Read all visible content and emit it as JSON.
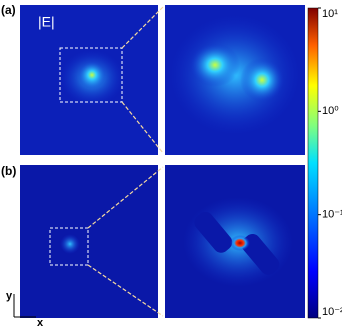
{
  "panels": [
    {
      "label": "(a)",
      "field_label": "|E|"
    },
    {
      "label": "(b)"
    }
  ],
  "colorbar": {
    "scale": "log",
    "lim": [
      0.01,
      10
    ],
    "ticks": [
      {
        "value": 10,
        "label": "10¹"
      },
      {
        "value": 1,
        "label": "10⁰"
      },
      {
        "value": 0.1,
        "label": "10⁻¹"
      },
      {
        "value": 0.01,
        "label": "10⁻²"
      }
    ]
  },
  "axes": {
    "y": "y",
    "x": "x"
  }
}
